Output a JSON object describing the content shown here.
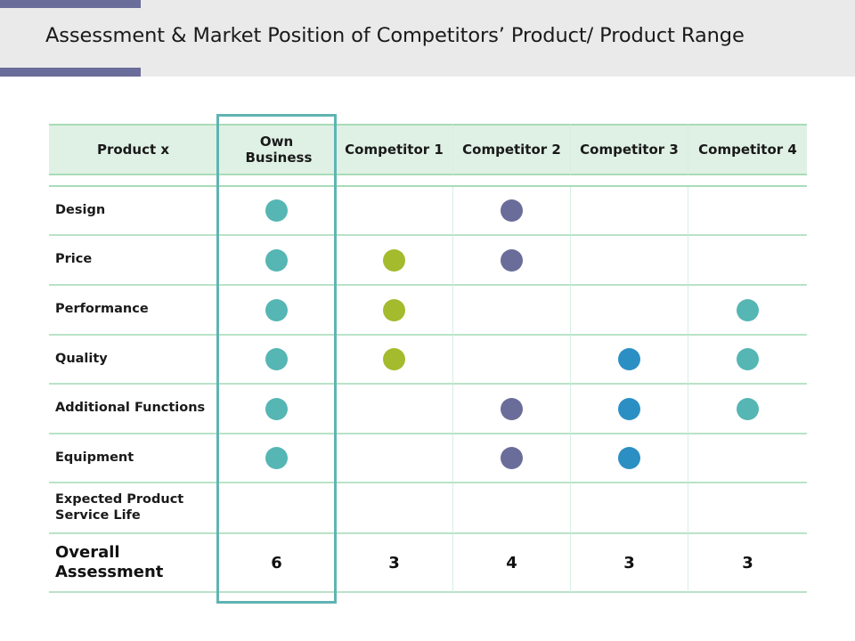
{
  "header": {
    "title": "Assessment & Market Position of Competitors’ Product/ Product Range"
  },
  "table": {
    "columns": [
      "Product x",
      "Own Business",
      "Competitor 1",
      "Competitor 2",
      "Competitor 3",
      "Competitor 4"
    ],
    "rows": [
      {
        "label": "Design",
        "marks": [
          "teal",
          null,
          "indigo",
          null,
          null
        ]
      },
      {
        "label": "Price",
        "marks": [
          "teal",
          "olive",
          "indigo",
          null,
          null
        ]
      },
      {
        "label": "Performance",
        "marks": [
          "teal",
          "olive",
          null,
          null,
          "teal"
        ]
      },
      {
        "label": "Quality",
        "marks": [
          "teal",
          "olive",
          null,
          "blue",
          "teal"
        ]
      },
      {
        "label": "Additional Functions",
        "marks": [
          "teal",
          null,
          "indigo",
          "blue",
          "teal"
        ]
      },
      {
        "label": "Equipment",
        "marks": [
          "teal",
          null,
          "indigo",
          "blue",
          null
        ]
      },
      {
        "label": "Expected Product Service Life",
        "marks": [
          null,
          null,
          null,
          null,
          null
        ]
      }
    ],
    "totals": {
      "label": "Overall Assessment",
      "values": [
        "6",
        "3",
        "4",
        "3",
        "3"
      ]
    }
  },
  "colors": {
    "teal": "#55b6b4",
    "olive": "#a3bb2d",
    "indigo": "#6a6d99",
    "blue": "#2b8fc4",
    "header_bg": "#dff1e4",
    "accent_bar": "#6a6d99",
    "highlight_frame": "#5fb4b3"
  }
}
